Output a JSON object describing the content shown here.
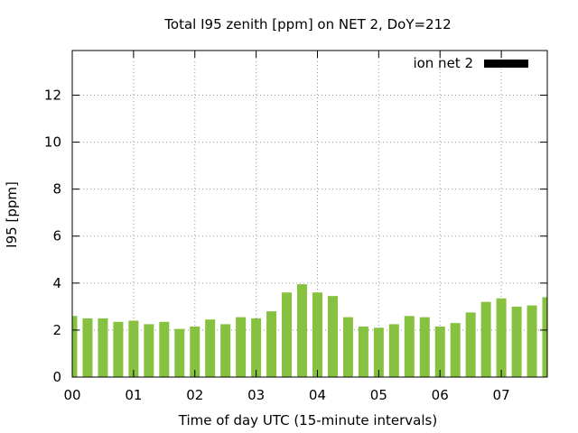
{
  "chart_data": {
    "type": "bar",
    "title": "Total I95 zenith [ppm] on NET 2, DoY=212",
    "xlabel": "Time of day UTC (15-minute intervals)",
    "ylabel": "I95 [ppm]",
    "ylim": [
      0,
      13.9
    ],
    "yticks": [
      0,
      2,
      4,
      6,
      8,
      10,
      12
    ],
    "xlim": [
      0,
      7.75
    ],
    "xticks": [
      {
        "value": 0,
        "label": "00"
      },
      {
        "value": 1,
        "label": "01"
      },
      {
        "value": 2,
        "label": "02"
      },
      {
        "value": 3,
        "label": "03"
      },
      {
        "value": 4,
        "label": "04"
      },
      {
        "value": 5,
        "label": "05"
      },
      {
        "value": 6,
        "label": "06"
      },
      {
        "value": 7,
        "label": "07"
      }
    ],
    "grid": true,
    "legend_position": "top-right",
    "series": [
      {
        "name": "ion net 2",
        "color": "#86c240",
        "legend_color": "#000000",
        "x": [
          0,
          0.25,
          0.5,
          0.75,
          1,
          1.25,
          1.5,
          1.75,
          2,
          2.25,
          2.5,
          2.75,
          3,
          3.25,
          3.5,
          3.75,
          4,
          4.25,
          4.5,
          4.75,
          5,
          5.25,
          5.5,
          5.75,
          6,
          6.25,
          6.5,
          6.75,
          7,
          7.25,
          7.5,
          7.75
        ],
        "values": [
          2.6,
          2.5,
          2.5,
          2.35,
          2.4,
          2.25,
          2.35,
          2.05,
          2.15,
          2.45,
          2.25,
          2.55,
          2.5,
          2.8,
          3.6,
          3.95,
          3.6,
          3.45,
          2.55,
          2.15,
          2.1,
          2.25,
          2.6,
          2.55,
          2.15,
          2.3,
          2.75,
          3.2,
          3.35,
          3.0,
          3.05,
          3.4
        ]
      }
    ]
  }
}
